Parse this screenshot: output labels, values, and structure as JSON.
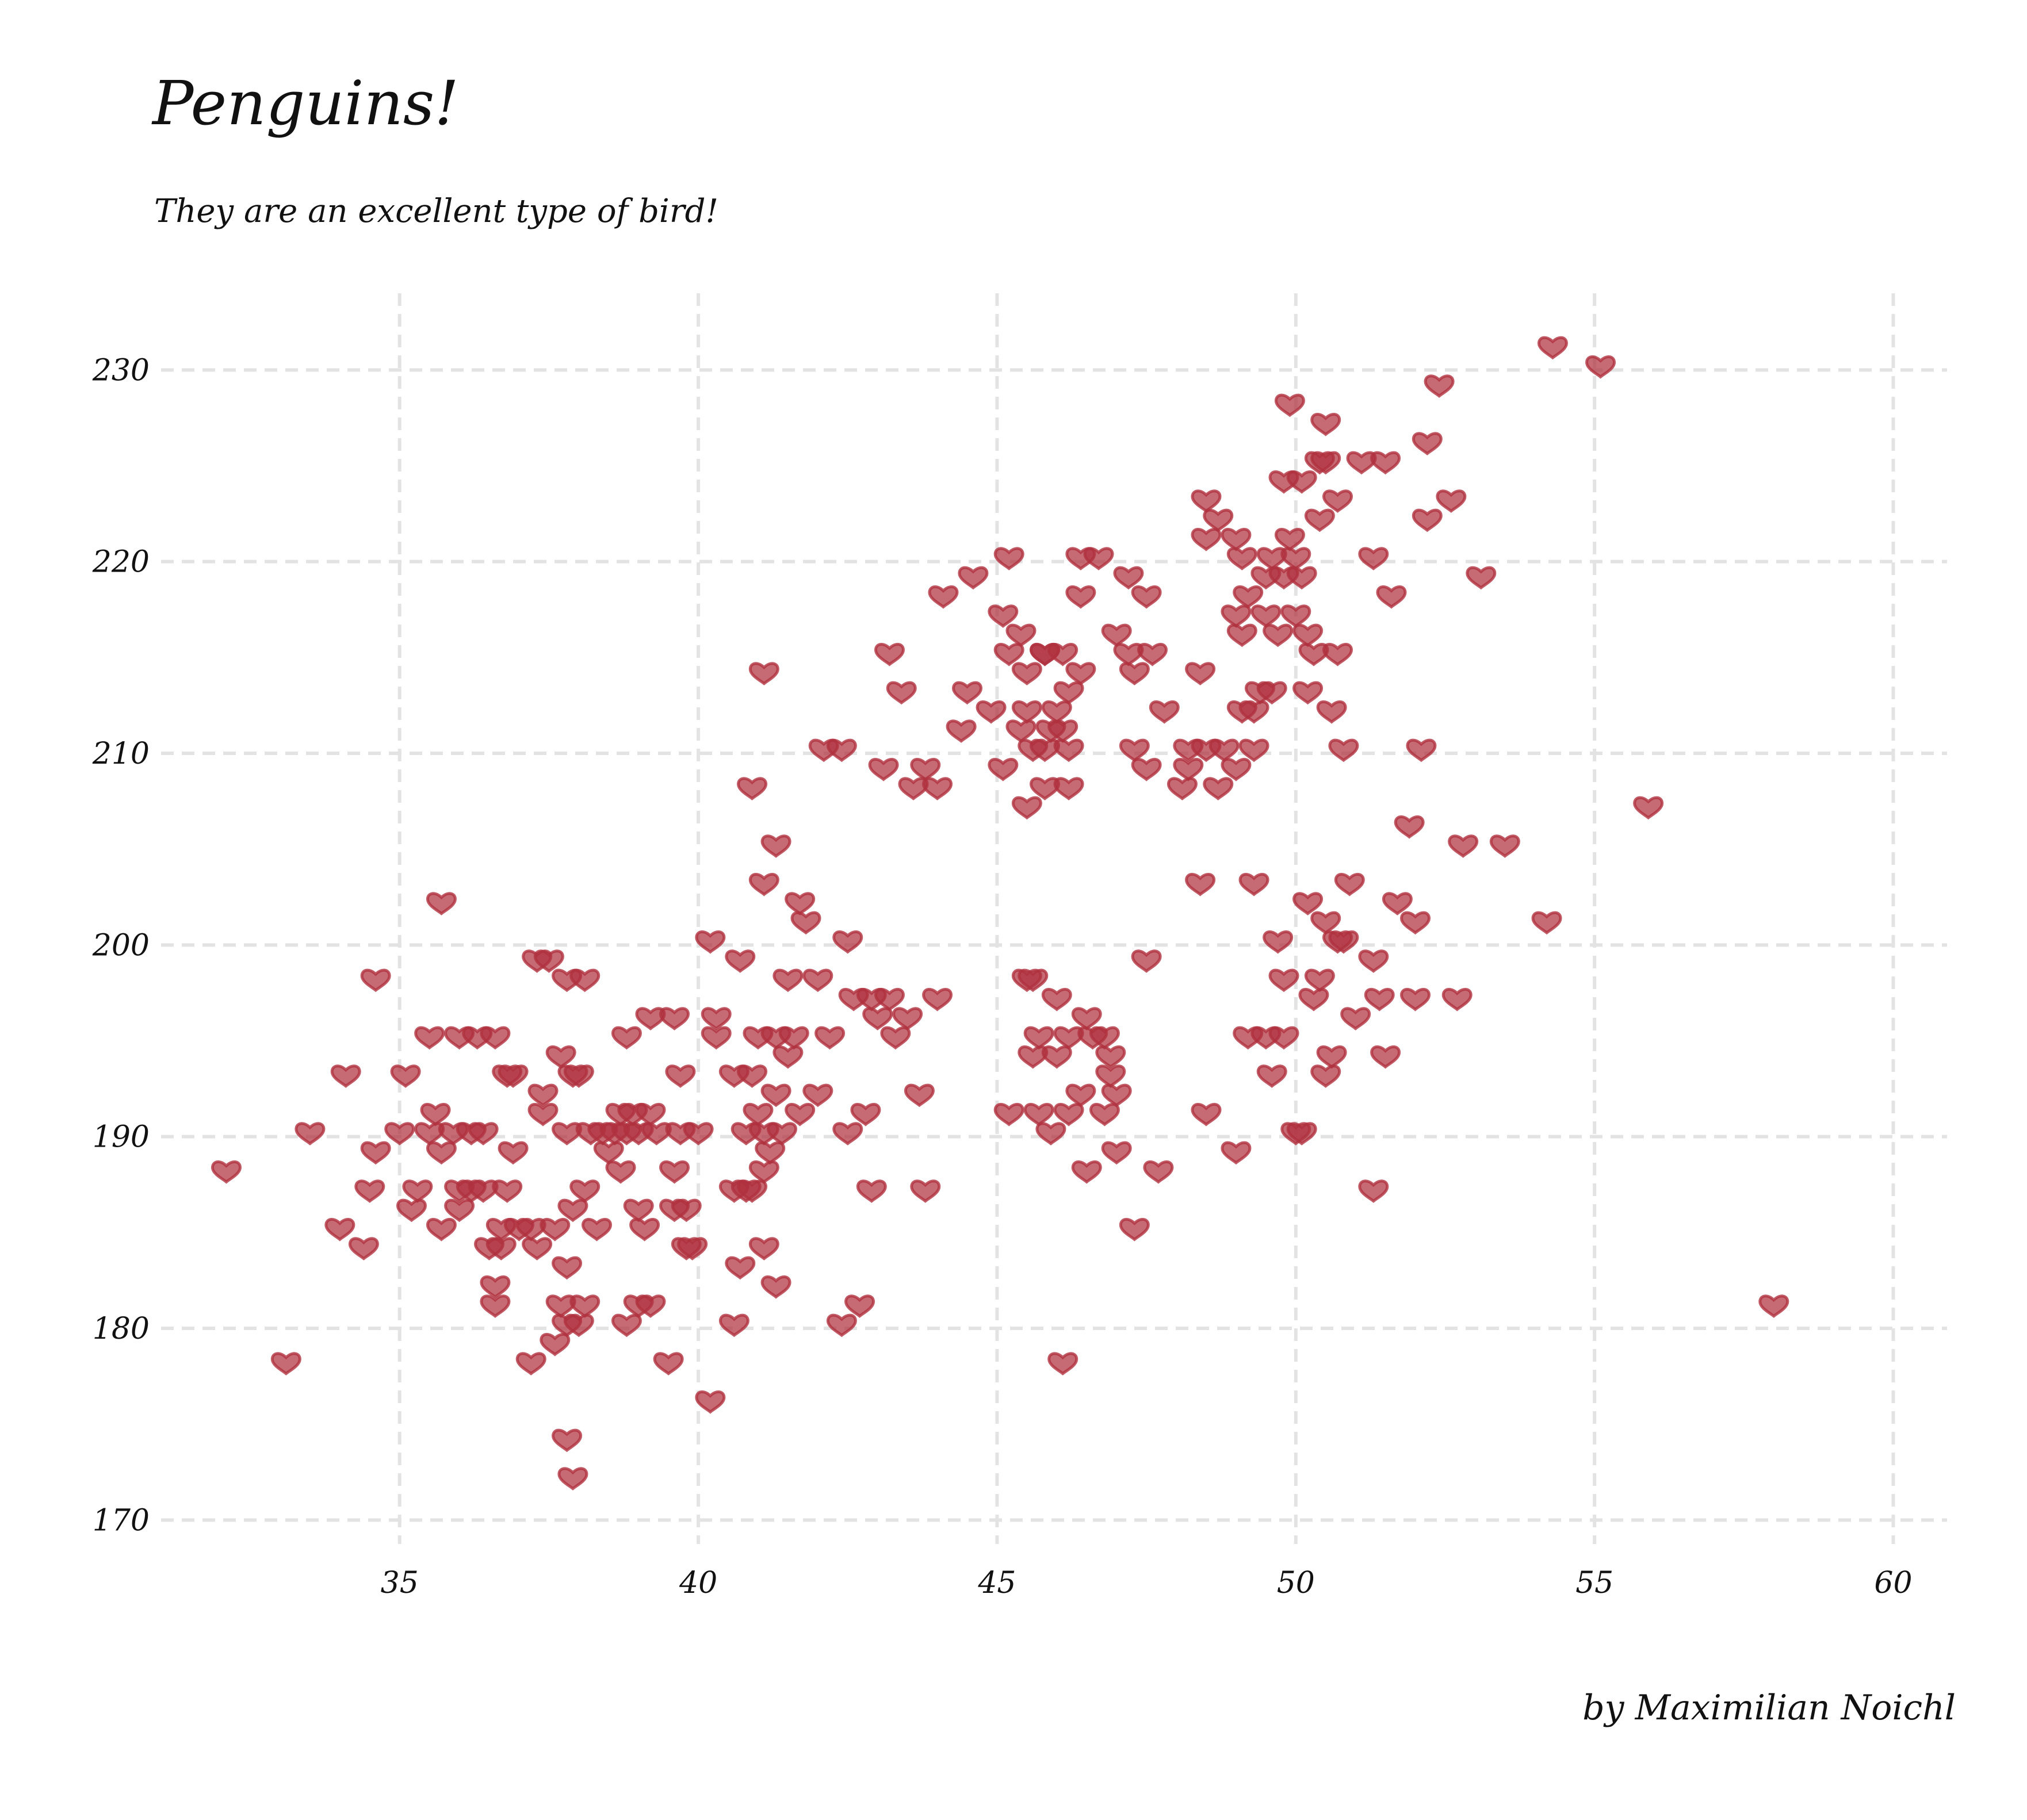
{
  "chart_data": {
    "type": "scatter",
    "title": "Penguins!",
    "subtitle": "They are an excellent type of bird!",
    "caption": "by Maximilian Noichl",
    "xlabel": "",
    "ylabel": "",
    "xlim": [
      31.2,
      60.9
    ],
    "ylim": [
      169.2,
      232.5
    ],
    "x_ticks": [
      35,
      40,
      45,
      50,
      55,
      60
    ],
    "y_ticks": [
      170,
      180,
      190,
      200,
      210,
      220,
      230
    ],
    "grid": true,
    "marker": "heart",
    "marker_color": "#b0313f",
    "points": [
      [
        32.1,
        188
      ],
      [
        33.1,
        178
      ],
      [
        33.5,
        190
      ],
      [
        34.0,
        185
      ],
      [
        34.1,
        193
      ],
      [
        34.4,
        184
      ],
      [
        34.5,
        187
      ],
      [
        34.6,
        189
      ],
      [
        34.6,
        198
      ],
      [
        35.0,
        190
      ],
      [
        35.1,
        193
      ],
      [
        35.2,
        186
      ],
      [
        35.3,
        187
      ],
      [
        35.5,
        190
      ],
      [
        35.5,
        195
      ],
      [
        35.6,
        191
      ],
      [
        35.7,
        185
      ],
      [
        35.7,
        189
      ],
      [
        35.7,
        202
      ],
      [
        35.9,
        190
      ],
      [
        36.0,
        195
      ],
      [
        36.0,
        186
      ],
      [
        36.0,
        187
      ],
      [
        36.2,
        187
      ],
      [
        36.2,
        190
      ],
      [
        36.3,
        195
      ],
      [
        36.4,
        187
      ],
      [
        36.4,
        190
      ],
      [
        36.5,
        184
      ],
      [
        36.6,
        182
      ],
      [
        36.6,
        181
      ],
      [
        36.6,
        195
      ],
      [
        36.7,
        185
      ],
      [
        36.7,
        184
      ],
      [
        36.8,
        193
      ],
      [
        36.8,
        187
      ],
      [
        36.9,
        193
      ],
      [
        36.9,
        189
      ],
      [
        37.0,
        185
      ],
      [
        37.2,
        185
      ],
      [
        37.3,
        184
      ],
      [
        37.2,
        178
      ],
      [
        37.3,
        199
      ],
      [
        37.4,
        192
      ],
      [
        37.4,
        191
      ],
      [
        37.5,
        199
      ],
      [
        37.6,
        179
      ],
      [
        37.6,
        185
      ],
      [
        37.7,
        194
      ],
      [
        37.7,
        181
      ],
      [
        37.8,
        198
      ],
      [
        37.8,
        180
      ],
      [
        37.8,
        183
      ],
      [
        37.8,
        174
      ],
      [
        37.8,
        190
      ],
      [
        37.9,
        193
      ],
      [
        37.9,
        186
      ],
      [
        37.9,
        172
      ],
      [
        38.0,
        180
      ],
      [
        38.0,
        193
      ],
      [
        38.1,
        187
      ],
      [
        38.1,
        181
      ],
      [
        38.1,
        198
      ],
      [
        38.2,
        190
      ],
      [
        38.3,
        185
      ],
      [
        38.4,
        190
      ],
      [
        38.5,
        189
      ],
      [
        38.6,
        190
      ],
      [
        38.7,
        188
      ],
      [
        38.7,
        191
      ],
      [
        38.8,
        195
      ],
      [
        38.8,
        180
      ],
      [
        38.8,
        190
      ],
      [
        38.9,
        191
      ],
      [
        39.0,
        181
      ],
      [
        39.0,
        186
      ],
      [
        39.0,
        190
      ],
      [
        39.1,
        185
      ],
      [
        39.2,
        181
      ],
      [
        39.2,
        191
      ],
      [
        39.2,
        196
      ],
      [
        39.3,
        190
      ],
      [
        39.5,
        178
      ],
      [
        39.6,
        196
      ],
      [
        39.6,
        188
      ],
      [
        39.6,
        186
      ],
      [
        39.7,
        190
      ],
      [
        39.7,
        193
      ],
      [
        39.8,
        184
      ],
      [
        39.8,
        186
      ],
      [
        39.9,
        184
      ],
      [
        40.0,
        190
      ],
      [
        40.2,
        176
      ],
      [
        40.2,
        200
      ],
      [
        40.3,
        196
      ],
      [
        40.3,
        195
      ],
      [
        40.6,
        193
      ],
      [
        40.6,
        187
      ],
      [
        40.6,
        180
      ],
      [
        40.7,
        183
      ],
      [
        40.7,
        199
      ],
      [
        40.8,
        187
      ],
      [
        40.8,
        190
      ],
      [
        40.9,
        208
      ],
      [
        40.9,
        193
      ],
      [
        40.9,
        187
      ],
      [
        41.0,
        195
      ],
      [
        41.0,
        191
      ],
      [
        41.1,
        184
      ],
      [
        41.1,
        214
      ],
      [
        41.1,
        190
      ],
      [
        41.1,
        188
      ],
      [
        41.1,
        203
      ],
      [
        41.2,
        189
      ],
      [
        41.3,
        182
      ],
      [
        41.3,
        192
      ],
      [
        41.3,
        195
      ],
      [
        41.3,
        205
      ],
      [
        41.4,
        190
      ],
      [
        41.5,
        194
      ],
      [
        41.5,
        198
      ],
      [
        41.6,
        195
      ],
      [
        41.7,
        202
      ],
      [
        41.7,
        191
      ],
      [
        41.8,
        201
      ],
      [
        42.0,
        192
      ],
      [
        42.0,
        198
      ],
      [
        42.1,
        210
      ],
      [
        42.2,
        195
      ],
      [
        42.4,
        210
      ],
      [
        42.4,
        180
      ],
      [
        42.5,
        190
      ],
      [
        42.5,
        200
      ],
      [
        42.6,
        197
      ],
      [
        42.7,
        181
      ],
      [
        42.8,
        191
      ],
      [
        42.9,
        187
      ],
      [
        42.9,
        197
      ],
      [
        43.0,
        196
      ],
      [
        43.1,
        209
      ],
      [
        43.2,
        197
      ],
      [
        43.2,
        215
      ],
      [
        43.3,
        195
      ],
      [
        43.4,
        213
      ],
      [
        43.5,
        196
      ],
      [
        43.6,
        208
      ],
      [
        43.7,
        192
      ],
      [
        43.8,
        187
      ],
      [
        43.8,
        209
      ],
      [
        44.0,
        208
      ],
      [
        44.0,
        197
      ],
      [
        44.1,
        218
      ],
      [
        44.4,
        211
      ],
      [
        44.5,
        213
      ],
      [
        44.6,
        219
      ],
      [
        44.9,
        212
      ],
      [
        45.1,
        217
      ],
      [
        45.1,
        209
      ],
      [
        45.2,
        215
      ],
      [
        45.2,
        220
      ],
      [
        45.4,
        211
      ],
      [
        45.4,
        216
      ],
      [
        45.5,
        212
      ],
      [
        45.5,
        207
      ],
      [
        45.5,
        214
      ],
      [
        45.6,
        210
      ],
      [
        45.6,
        198
      ],
      [
        45.7,
        191
      ],
      [
        45.7,
        195
      ],
      [
        45.8,
        215
      ],
      [
        45.8,
        215
      ],
      [
        45.8,
        208
      ],
      [
        45.8,
        210
      ],
      [
        45.9,
        211
      ],
      [
        46.0,
        194
      ],
      [
        46.0,
        212
      ],
      [
        46.1,
        211
      ],
      [
        46.1,
        215
      ],
      [
        46.2,
        191
      ],
      [
        46.2,
        208
      ],
      [
        46.2,
        195
      ],
      [
        46.2,
        210
      ],
      [
        46.2,
        213
      ],
      [
        46.4,
        214
      ],
      [
        46.4,
        220
      ],
      [
        46.4,
        218
      ],
      [
        46.5,
        196
      ],
      [
        46.5,
        188
      ],
      [
        46.7,
        220
      ],
      [
        46.8,
        195
      ],
      [
        46.8,
        191
      ],
      [
        46.9,
        194
      ],
      [
        47.0,
        192
      ],
      [
        47.0,
        216
      ],
      [
        47.2,
        219
      ],
      [
        47.2,
        215
      ],
      [
        47.3,
        214
      ],
      [
        47.3,
        210
      ],
      [
        47.5,
        199
      ],
      [
        47.5,
        218
      ],
      [
        47.5,
        209
      ],
      [
        47.6,
        215
      ],
      [
        47.7,
        188
      ],
      [
        47.8,
        212
      ],
      [
        48.1,
        208
      ],
      [
        48.2,
        210
      ],
      [
        48.2,
        209
      ],
      [
        48.4,
        214
      ],
      [
        48.5,
        210
      ],
      [
        48.5,
        221
      ],
      [
        48.5,
        223
      ],
      [
        48.7,
        208
      ],
      [
        48.7,
        222
      ],
      [
        48.8,
        210
      ],
      [
        49.0,
        217
      ],
      [
        49.0,
        221
      ],
      [
        49.0,
        209
      ],
      [
        49.1,
        216
      ],
      [
        49.1,
        220
      ],
      [
        49.1,
        212
      ],
      [
        49.2,
        218
      ],
      [
        49.3,
        210
      ],
      [
        49.3,
        212
      ],
      [
        49.4,
        213
      ],
      [
        49.5,
        217
      ],
      [
        49.5,
        219
      ],
      [
        49.6,
        220
      ],
      [
        49.6,
        213
      ],
      [
        49.7,
        216
      ],
      [
        49.8,
        224
      ],
      [
        49.8,
        219
      ],
      [
        49.9,
        221
      ],
      [
        49.9,
        228
      ],
      [
        50.0,
        220
      ],
      [
        50.0,
        217
      ],
      [
        50.1,
        224
      ],
      [
        50.1,
        219
      ],
      [
        50.2,
        216
      ],
      [
        50.2,
        213
      ],
      [
        50.3,
        215
      ],
      [
        50.4,
        222
      ],
      [
        50.4,
        225
      ],
      [
        50.5,
        225
      ],
      [
        50.5,
        227
      ],
      [
        50.6,
        212
      ],
      [
        50.7,
        215
      ],
      [
        50.7,
        223
      ],
      [
        50.8,
        210
      ],
      [
        51.1,
        225
      ],
      [
        51.3,
        220
      ],
      [
        51.5,
        225
      ],
      [
        51.6,
        218
      ],
      [
        52.1,
        210
      ],
      [
        52.2,
        226
      ],
      [
        52.2,
        222
      ],
      [
        52.4,
        229
      ],
      [
        52.6,
        223
      ],
      [
        53.1,
        219
      ],
      [
        54.3,
        231
      ],
      [
        55.1,
        230
      ],
      [
        55.9,
        207
      ],
      [
        46.1,
        178
      ],
      [
        50.1,
        190
      ],
      [
        51.3,
        187
      ],
      [
        51.5,
        194
      ],
      [
        52.0,
        201
      ],
      [
        52.0,
        197
      ],
      [
        52.7,
        197
      ],
      [
        53.5,
        205
      ],
      [
        54.2,
        201
      ],
      [
        58.0,
        181
      ],
      [
        50.2,
        202
      ],
      [
        50.4,
        198
      ],
      [
        50.6,
        194
      ],
      [
        51.0,
        196
      ],
      [
        51.4,
        197
      ],
      [
        51.7,
        202
      ],
      [
        51.9,
        206
      ],
      [
        52.8,
        205
      ],
      [
        50.3,
        197
      ],
      [
        50.5,
        201
      ],
      [
        50.8,
        200
      ],
      [
        49.5,
        195
      ],
      [
        49.6,
        193
      ],
      [
        49.3,
        203
      ],
      [
        48.5,
        191
      ],
      [
        49.8,
        198
      ],
      [
        50.0,
        190
      ],
      [
        50.9,
        203
      ],
      [
        51.3,
        199
      ],
      [
        50.7,
        200
      ],
      [
        49.2,
        195
      ],
      [
        49.0,
        189
      ],
      [
        49.7,
        200
      ],
      [
        50.5,
        193
      ],
      [
        49.8,
        195
      ],
      [
        48.4,
        203
      ],
      [
        45.9,
        190
      ],
      [
        45.5,
        198
      ],
      [
        46.4,
        192
      ],
      [
        47.0,
        189
      ],
      [
        45.2,
        191
      ],
      [
        46.6,
        195
      ],
      [
        47.3,
        185
      ],
      [
        46.0,
        197
      ],
      [
        45.6,
        194
      ],
      [
        46.9,
        193
      ]
    ]
  }
}
